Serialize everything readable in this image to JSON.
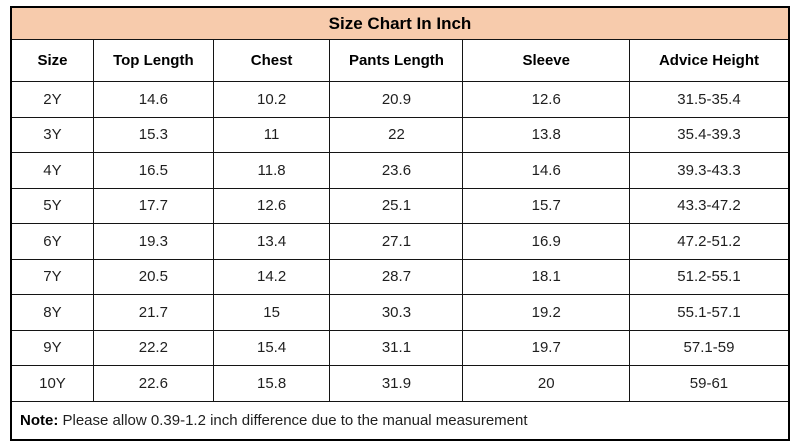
{
  "chart_data": {
    "type": "table",
    "title": "Size Chart In Inch",
    "columns": [
      "Size",
      "Top Length",
      "Chest",
      "Pants Length",
      "Sleeve",
      "Advice Height"
    ],
    "rows": [
      [
        "2Y",
        "14.6",
        "10.2",
        "20.9",
        "12.6",
        "31.5-35.4"
      ],
      [
        "3Y",
        "15.3",
        "11",
        "22",
        "13.8",
        "35.4-39.3"
      ],
      [
        "4Y",
        "16.5",
        "11.8",
        "23.6",
        "14.6",
        "39.3-43.3"
      ],
      [
        "5Y",
        "17.7",
        "12.6",
        "25.1",
        "15.7",
        "43.3-47.2"
      ],
      [
        "6Y",
        "19.3",
        "13.4",
        "27.1",
        "16.9",
        "47.2-51.2"
      ],
      [
        "7Y",
        "20.5",
        "14.2",
        "28.7",
        "18.1",
        "51.2-55.1"
      ],
      [
        "8Y",
        "21.7",
        "15",
        "30.3",
        "19.2",
        "55.1-57.1"
      ],
      [
        "9Y",
        "22.2",
        "15.4",
        "31.1",
        "19.7",
        "57.1-59"
      ],
      [
        "10Y",
        "22.6",
        "15.8",
        "31.9",
        "20",
        "59-61"
      ]
    ],
    "note_label": "Note:",
    "note_text": " Please allow 0.39-1.2 inch difference due to the manual measurement",
    "layout": {
      "legend": "none",
      "grid": "full-borders",
      "title_position": "top-merged-row"
    }
  },
  "colors": {
    "title_background": "#f7cbac",
    "border": "#141414",
    "text": "#1f1f1f",
    "cell_background": "#ffffff"
  }
}
